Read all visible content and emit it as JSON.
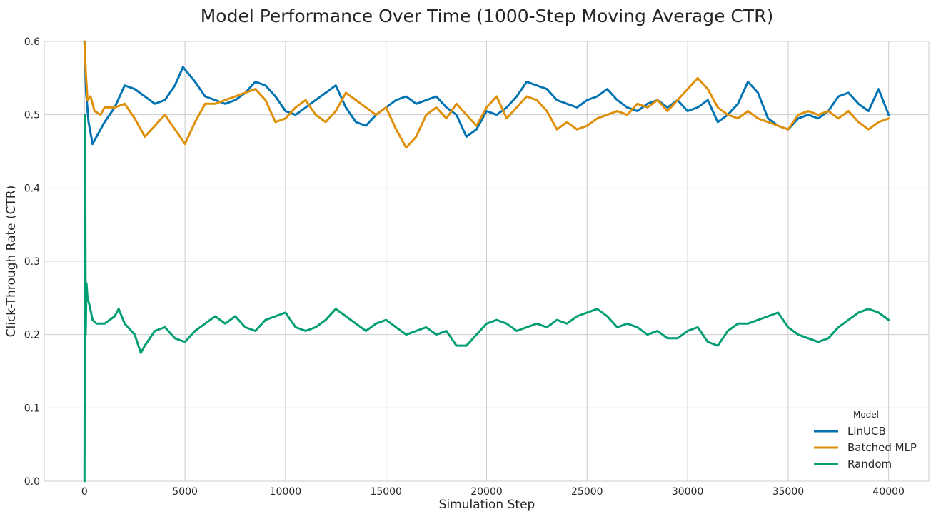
{
  "chart_data": {
    "type": "line",
    "title": "Model Performance Over Time (1000-Step Moving Average CTR)",
    "xlabel": "Simulation Step",
    "ylabel": "Click-Through Rate (CTR)",
    "xlim": [
      -2000,
      42000
    ],
    "ylim": [
      0,
      0.6
    ],
    "xticks": [
      0,
      5000,
      10000,
      15000,
      20000,
      25000,
      30000,
      35000,
      40000
    ],
    "yticks": [
      0.0,
      0.1,
      0.2,
      0.3,
      0.4,
      0.5,
      0.6
    ],
    "grid": true,
    "legend": {
      "title": "Model",
      "placement": "bottom-right"
    },
    "series": [
      {
        "name": "LinUCB",
        "color": "#0173b2",
        "x": [
          0,
          80,
          200,
          400,
          600,
          800,
          1000,
          1500,
          2000,
          2500,
          3000,
          3500,
          4000,
          4500,
          4900,
          5500,
          6000,
          6500,
          7000,
          7500,
          8000,
          8500,
          9000,
          9500,
          10000,
          10500,
          11000,
          11500,
          12000,
          12500,
          13000,
          13500,
          14000,
          14500,
          15000,
          15500,
          16000,
          16500,
          17000,
          17500,
          18000,
          18500,
          19000,
          19500,
          20000,
          20500,
          21000,
          21500,
          22000,
          22500,
          23000,
          23500,
          24000,
          24500,
          25000,
          25500,
          26000,
          26500,
          27000,
          27500,
          28000,
          28500,
          29000,
          29500,
          30000,
          30500,
          31000,
          31500,
          32000,
          32500,
          33000,
          33500,
          34000,
          34500,
          35000,
          35500,
          36000,
          36500,
          37000,
          37500,
          38000,
          38500,
          39000,
          39500,
          40000
        ],
        "values": [
          0.6,
          0.53,
          0.49,
          0.46,
          0.47,
          0.48,
          0.49,
          0.51,
          0.54,
          0.535,
          0.525,
          0.515,
          0.52,
          0.54,
          0.565,
          0.545,
          0.525,
          0.52,
          0.515,
          0.52,
          0.53,
          0.545,
          0.54,
          0.525,
          0.505,
          0.5,
          0.51,
          0.52,
          0.53,
          0.54,
          0.51,
          0.49,
          0.485,
          0.5,
          0.51,
          0.52,
          0.525,
          0.515,
          0.52,
          0.525,
          0.51,
          0.5,
          0.47,
          0.48,
          0.505,
          0.5,
          0.51,
          0.525,
          0.545,
          0.54,
          0.535,
          0.52,
          0.515,
          0.51,
          0.52,
          0.525,
          0.535,
          0.52,
          0.51,
          0.505,
          0.515,
          0.52,
          0.51,
          0.52,
          0.505,
          0.51,
          0.52,
          0.49,
          0.5,
          0.515,
          0.545,
          0.53,
          0.495,
          0.485,
          0.48,
          0.495,
          0.5,
          0.495,
          0.505,
          0.525,
          0.53,
          0.515,
          0.505,
          0.535,
          0.5
        ]
      },
      {
        "name": "Batched MLP",
        "color": "#de8f05",
        "x": [
          0,
          60,
          150,
          300,
          500,
          800,
          1000,
          1500,
          2000,
          2500,
          3000,
          3500,
          4000,
          4500,
          5000,
          5500,
          6000,
          6500,
          7000,
          7500,
          8000,
          8500,
          9000,
          9500,
          10000,
          10500,
          11000,
          11500,
          12000,
          12500,
          13000,
          13500,
          14000,
          14500,
          15000,
          15500,
          16000,
          16500,
          17000,
          17500,
          18000,
          18500,
          19000,
          19500,
          20000,
          20500,
          21000,
          21500,
          22000,
          22500,
          23000,
          23500,
          24000,
          24500,
          25000,
          25500,
          26000,
          26500,
          27000,
          27500,
          28000,
          28500,
          29000,
          29500,
          30000,
          30500,
          31000,
          31500,
          32000,
          32500,
          33000,
          33500,
          34000,
          34500,
          35000,
          35500,
          36000,
          36500,
          37000,
          37500,
          38000,
          38500,
          39000,
          39500,
          40000
        ],
        "values": [
          0.6,
          0.56,
          0.52,
          0.525,
          0.505,
          0.5,
          0.51,
          0.51,
          0.515,
          0.495,
          0.47,
          0.485,
          0.5,
          0.48,
          0.46,
          0.49,
          0.515,
          0.515,
          0.52,
          0.525,
          0.53,
          0.535,
          0.52,
          0.49,
          0.495,
          0.51,
          0.52,
          0.5,
          0.49,
          0.505,
          0.53,
          0.52,
          0.51,
          0.5,
          0.51,
          0.48,
          0.455,
          0.47,
          0.5,
          0.51,
          0.495,
          0.515,
          0.5,
          0.485,
          0.51,
          0.525,
          0.495,
          0.51,
          0.525,
          0.52,
          0.505,
          0.48,
          0.49,
          0.48,
          0.485,
          0.495,
          0.5,
          0.505,
          0.5,
          0.515,
          0.51,
          0.52,
          0.505,
          0.52,
          0.535,
          0.55,
          0.535,
          0.51,
          0.5,
          0.495,
          0.505,
          0.495,
          0.49,
          0.485,
          0.48,
          0.5,
          0.505,
          0.5,
          0.505,
          0.495,
          0.505,
          0.49,
          0.48,
          0.49,
          0.495
        ]
      },
      {
        "name": "Random",
        "color": "#029e73",
        "x": [
          0,
          30,
          60,
          100,
          150,
          250,
          400,
          600,
          1000,
          1500,
          1700,
          2000,
          2500,
          2800,
          3000,
          3500,
          4000,
          4500,
          5000,
          5500,
          6000,
          6500,
          7000,
          7500,
          8000,
          8500,
          9000,
          9500,
          10000,
          10500,
          11000,
          11500,
          12000,
          12500,
          13000,
          13500,
          14000,
          14500,
          15000,
          15500,
          16000,
          16500,
          17000,
          17500,
          18000,
          18500,
          19000,
          19500,
          20000,
          20500,
          21000,
          21500,
          22000,
          22500,
          23000,
          23500,
          24000,
          24500,
          25000,
          25500,
          26000,
          26500,
          27000,
          27500,
          28000,
          28500,
          29000,
          29500,
          30000,
          30500,
          31000,
          31500,
          32000,
          32500,
          33000,
          33500,
          34000,
          34500,
          35000,
          35500,
          36000,
          36500,
          37000,
          37500,
          38000,
          38500,
          39000,
          39500,
          40000
        ],
        "values": [
          0.0,
          0.5,
          0.2,
          0.27,
          0.25,
          0.24,
          0.22,
          0.215,
          0.215,
          0.225,
          0.235,
          0.215,
          0.2,
          0.175,
          0.185,
          0.205,
          0.21,
          0.195,
          0.19,
          0.205,
          0.215,
          0.225,
          0.215,
          0.225,
          0.21,
          0.205,
          0.22,
          0.225,
          0.23,
          0.21,
          0.205,
          0.21,
          0.22,
          0.235,
          0.225,
          0.215,
          0.205,
          0.215,
          0.22,
          0.21,
          0.2,
          0.205,
          0.21,
          0.2,
          0.205,
          0.185,
          0.185,
          0.2,
          0.215,
          0.22,
          0.215,
          0.205,
          0.21,
          0.215,
          0.21,
          0.22,
          0.215,
          0.225,
          0.23,
          0.235,
          0.225,
          0.21,
          0.215,
          0.21,
          0.2,
          0.205,
          0.195,
          0.195,
          0.205,
          0.21,
          0.19,
          0.185,
          0.205,
          0.215,
          0.215,
          0.22,
          0.225,
          0.23,
          0.21,
          0.2,
          0.195,
          0.19,
          0.195,
          0.21,
          0.22,
          0.23,
          0.235,
          0.23,
          0.22
        ]
      }
    ]
  }
}
